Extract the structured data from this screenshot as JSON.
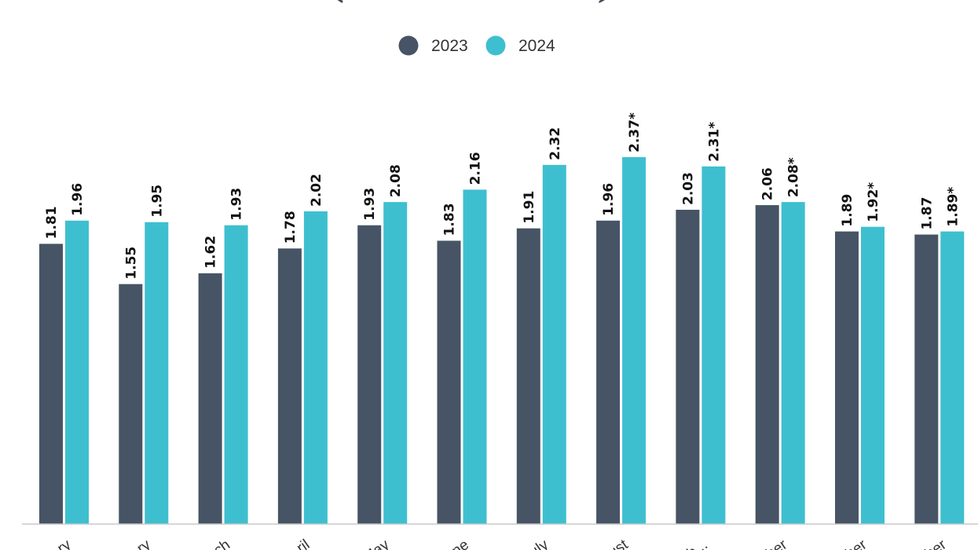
{
  "chart_data": {
    "type": "bar",
    "title": "(TEU Millions)",
    "categories": [
      "ry",
      "ry",
      "ch",
      "ril",
      "May",
      "ne",
      "uly",
      "ust",
      "b...",
      "ber",
      "ber",
      "ber"
    ],
    "series": [
      {
        "name": "2023",
        "color": "#465465",
        "values": [
          1.81,
          1.55,
          1.62,
          1.78,
          1.93,
          1.83,
          1.91,
          1.96,
          2.03,
          2.06,
          1.89,
          1.87
        ],
        "labels": [
          "1.81",
          "1.55",
          "1.62",
          "1.78",
          "1.93",
          "1.83",
          "1.91",
          "1.96",
          "2.03",
          "2.06",
          "1.89",
          "1.87"
        ]
      },
      {
        "name": "2024",
        "color": "#3ebfcf",
        "values": [
          1.96,
          1.95,
          1.93,
          2.02,
          2.08,
          2.16,
          2.32,
          2.37,
          2.31,
          2.08,
          1.92,
          1.89
        ],
        "labels": [
          "1.96",
          "1.95",
          "1.93",
          "2.02",
          "2.08",
          "2.16",
          "2.32",
          "2.37*",
          "2.31*",
          "2.08*",
          "1.92*",
          "1.89*"
        ]
      }
    ],
    "ylim": [
      0,
      2.37
    ],
    "legend_position": "top-center",
    "grid": false
  }
}
